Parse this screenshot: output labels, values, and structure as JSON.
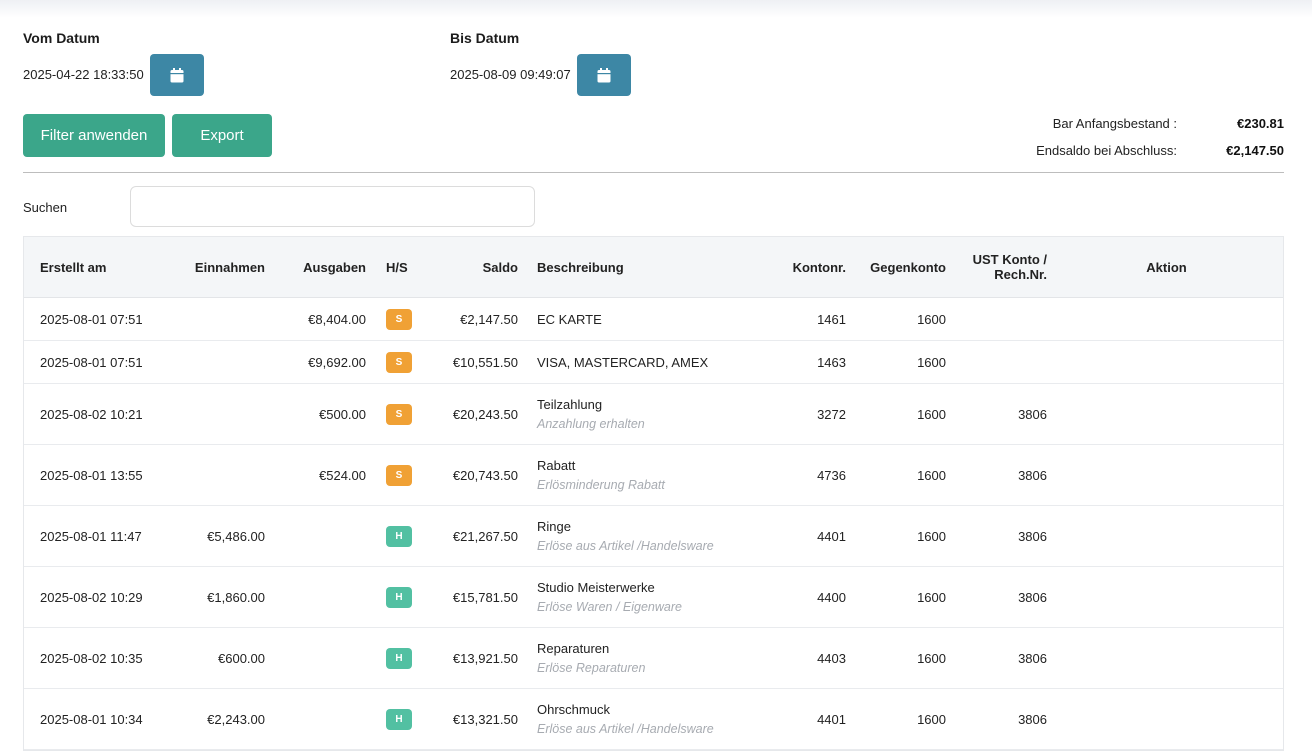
{
  "filters": {
    "from_label": "Vom Datum",
    "from_value": "2025-04-22 18:33:50",
    "to_label": "Bis Datum",
    "to_value": "2025-08-09 09:49:07",
    "apply_label": "Filter anwenden",
    "export_label": "Export",
    "calendar_icon": "calendar-icon"
  },
  "summary": {
    "opening_label": "Bar Anfangsbestand :",
    "opening_value": "€230.81",
    "closing_label": "Endsaldo bei Abschluss:",
    "closing_value": "€2,147.50"
  },
  "search": {
    "label": "Suchen",
    "value": "",
    "placeholder": ""
  },
  "table": {
    "columns": {
      "created": "Erstellt am",
      "income": "Einnahmen",
      "expense": "Ausgaben",
      "hs": "H/S",
      "balance": "Saldo",
      "description": "Beschreibung",
      "account": "Kontonr.",
      "counter": "Gegenkonto",
      "vat_line1": "UST Konto /",
      "vat_line2": "Rech.Nr.",
      "action": "Aktion"
    },
    "rows": [
      {
        "created": "2025-08-01 07:51",
        "income": "",
        "expense": "€8,404.00",
        "hs": "S",
        "balance": "€2,147.50",
        "title": "EC KARTE",
        "subtitle": "",
        "account": "1461",
        "counter": "1600",
        "vat": ""
      },
      {
        "created": "2025-08-01 07:51",
        "income": "",
        "expense": "€9,692.00",
        "hs": "S",
        "balance": "€10,551.50",
        "title": "VISA, MASTERCARD, AMEX",
        "subtitle": "",
        "account": "1463",
        "counter": "1600",
        "vat": ""
      },
      {
        "created": "2025-08-02 10:21",
        "income": "",
        "expense": "€500.00",
        "hs": "S",
        "balance": "€20,243.50",
        "title": "Teilzahlung",
        "subtitle": "Anzahlung erhalten",
        "account": "3272",
        "counter": "1600",
        "vat": "3806"
      },
      {
        "created": "2025-08-01 13:55",
        "income": "",
        "expense": "€524.00",
        "hs": "S",
        "balance": "€20,743.50",
        "title": "Rabatt",
        "subtitle": "Erlösminderung Rabatt",
        "account": "4736",
        "counter": "1600",
        "vat": "3806"
      },
      {
        "created": "2025-08-01 11:47",
        "income": "€5,486.00",
        "expense": "",
        "hs": "H",
        "balance": "€21,267.50",
        "title": "Ringe",
        "subtitle": "Erlöse aus Artikel /Handelsware",
        "account": "4401",
        "counter": "1600",
        "vat": "3806"
      },
      {
        "created": "2025-08-02 10:29",
        "income": "€1,860.00",
        "expense": "",
        "hs": "H",
        "balance": "€15,781.50",
        "title": "Studio Meisterwerke",
        "subtitle": "Erlöse Waren / Eigenware",
        "account": "4400",
        "counter": "1600",
        "vat": "3806"
      },
      {
        "created": "2025-08-02 10:35",
        "income": "€600.00",
        "expense": "",
        "hs": "H",
        "balance": "€13,921.50",
        "title": "Reparaturen",
        "subtitle": "Erlöse Reparaturen",
        "account": "4403",
        "counter": "1600",
        "vat": "3806"
      },
      {
        "created": "2025-08-01 10:34",
        "income": "€2,243.00",
        "expense": "",
        "hs": "H",
        "balance": "€13,321.50",
        "title": "Ohrschmuck",
        "subtitle": "Erlöse aus Artikel /Handelsware",
        "account": "4401",
        "counter": "1600",
        "vat": "3806"
      }
    ]
  },
  "colors": {
    "calendar_button": "#3d87a5",
    "action_button": "#3ba68a",
    "badge_s": "#f0a135",
    "badge_h": "#52c0a2"
  }
}
